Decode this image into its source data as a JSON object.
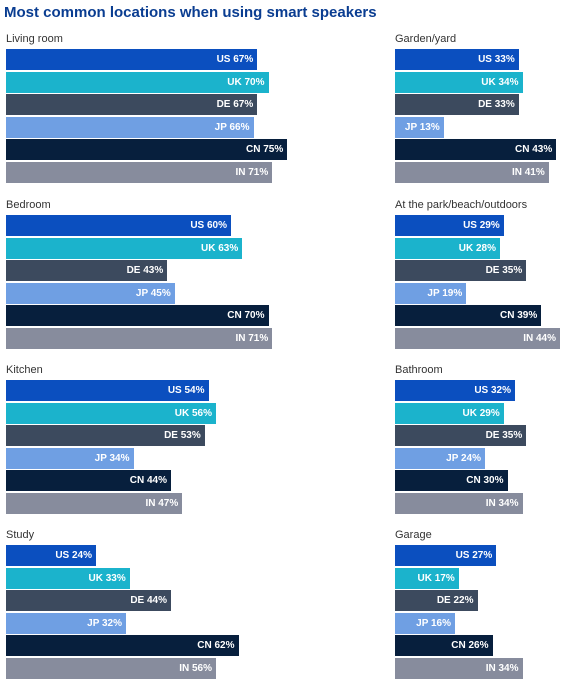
{
  "header": {
    "title": "Most common locations when using smart speakers"
  },
  "colors": {
    "US": "#0b4fbf",
    "UK": "#1bb3cc",
    "DE": "#3c4a5e",
    "JP": "#6f9fe3",
    "CN": "#071f3d",
    "IN": "#878c9d"
  },
  "chart_data": [
    {
      "type": "bar",
      "title": "Living room",
      "categories": [
        "US",
        "UK",
        "DE",
        "JP",
        "CN",
        "IN"
      ],
      "values": [
        67,
        70,
        67,
        66,
        75,
        71
      ],
      "labels": [
        "US 67%",
        "UK 70%",
        "DE 67%",
        "JP 66%",
        "CN 75%",
        "IN 71%"
      ]
    },
    {
      "type": "bar",
      "title": "Garden/yard",
      "categories": [
        "US",
        "UK",
        "DE",
        "JP",
        "CN",
        "IN"
      ],
      "values": [
        33,
        34,
        33,
        13,
        43,
        41
      ],
      "labels": [
        "US 33%",
        "UK 34%",
        "DE 33%",
        "JP 13%",
        "CN 43%",
        "IN 41%"
      ]
    },
    {
      "type": "bar",
      "title": "Bedroom",
      "categories": [
        "US",
        "UK",
        "DE",
        "JP",
        "CN",
        "IN"
      ],
      "values": [
        60,
        63,
        43,
        45,
        70,
        71
      ],
      "labels": [
        "US 60%",
        "UK 63%",
        "DE 43%",
        "JP 45%",
        "CN 70%",
        "IN 71%"
      ]
    },
    {
      "type": "bar",
      "title": "At the park/beach/outdoors",
      "categories": [
        "US",
        "UK",
        "DE",
        "JP",
        "CN",
        "IN"
      ],
      "values": [
        29,
        28,
        35,
        19,
        39,
        44
      ],
      "labels": [
        "US 29%",
        "UK 28%",
        "DE 35%",
        "JP 19%",
        "CN 39%",
        "IN 44%"
      ]
    },
    {
      "type": "bar",
      "title": "Kitchen",
      "categories": [
        "US",
        "UK",
        "DE",
        "JP",
        "CN",
        "IN"
      ],
      "values": [
        54,
        56,
        53,
        34,
        44,
        47
      ],
      "labels": [
        "US 54%",
        "UK 56%",
        "DE 53%",
        "JP 34%",
        "CN 44%",
        "IN 47%"
      ]
    },
    {
      "type": "bar",
      "title": "Bathroom",
      "categories": [
        "US",
        "UK",
        "DE",
        "JP",
        "CN",
        "IN"
      ],
      "values": [
        32,
        29,
        35,
        24,
        30,
        34
      ],
      "labels": [
        "US 32%",
        "UK 29%",
        "DE 35%",
        "JP 24%",
        "CN 30%",
        "IN 34%"
      ]
    },
    {
      "type": "bar",
      "title": "Study",
      "categories": [
        "US",
        "UK",
        "DE",
        "JP",
        "CN",
        "IN"
      ],
      "values": [
        24,
        33,
        44,
        32,
        62,
        56
      ],
      "labels": [
        "US 24%",
        "UK 33%",
        "DE 44%",
        "JP 32%",
        "CN 62%",
        "IN 56%"
      ]
    },
    {
      "type": "bar",
      "title": "Garage",
      "categories": [
        "US",
        "UK",
        "DE",
        "JP",
        "CN",
        "IN"
      ],
      "values": [
        27,
        17,
        22,
        16,
        26,
        34
      ],
      "labels": [
        "US 27%",
        "UK 17%",
        "DE 22%",
        "JP 16%",
        "CN 26%",
        "IN 34%"
      ]
    }
  ]
}
